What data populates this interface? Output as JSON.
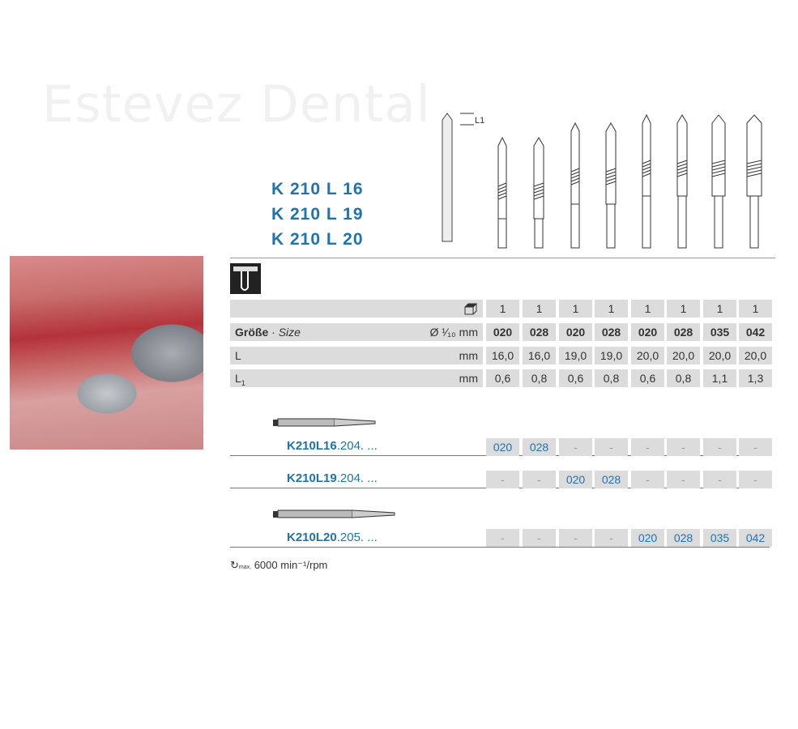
{
  "watermark": "Estevez Dental",
  "titles": [
    "K 210 L 16",
    "K 210 L 19",
    "K 210 L 20"
  ],
  "diagram_label": "L1",
  "spec": {
    "pack_values": [
      "1",
      "1",
      "1",
      "1",
      "1",
      "1",
      "1",
      "1"
    ],
    "size_label": "Größe",
    "size_sep": " · ",
    "size_label_en": "Size",
    "size_unit": "Ø ¹⁄₁₀ mm",
    "sizes": [
      "020",
      "028",
      "020",
      "028",
      "020",
      "028",
      "035",
      "042"
    ],
    "l_label": "L",
    "l_unit": "mm",
    "l_values": [
      "16,0",
      "16,0",
      "19,0",
      "19,0",
      "20,0",
      "20,0",
      "20,0",
      "20,0"
    ],
    "l1_label": "L",
    "l1_sub": "1",
    "l1_unit": "mm",
    "l1_values": [
      "0,6",
      "0,8",
      "0,6",
      "0,8",
      "0,6",
      "0,8",
      "1,1",
      "1,3"
    ]
  },
  "orders": [
    {
      "code_bold": "K210L16",
      "code_rest": ".204. ...",
      "values": [
        "020",
        "028",
        "-",
        "-",
        "-",
        "-",
        "-",
        "-"
      ]
    },
    {
      "code_bold": "K210L19",
      "code_rest": ".204. ...",
      "values": [
        "-",
        "-",
        "020",
        "028",
        "-",
        "-",
        "-",
        "-"
      ]
    },
    {
      "code_bold": "K210L20",
      "code_rest": ".205. ...",
      "values": [
        "-",
        "-",
        "-",
        "-",
        "020",
        "028",
        "035",
        "042"
      ]
    }
  ],
  "rpm": {
    "prefix": "max.",
    "text": "6000 min⁻¹/rpm"
  },
  "colors": {
    "accent": "#1f73b0",
    "cell": "#dcdcdc"
  }
}
